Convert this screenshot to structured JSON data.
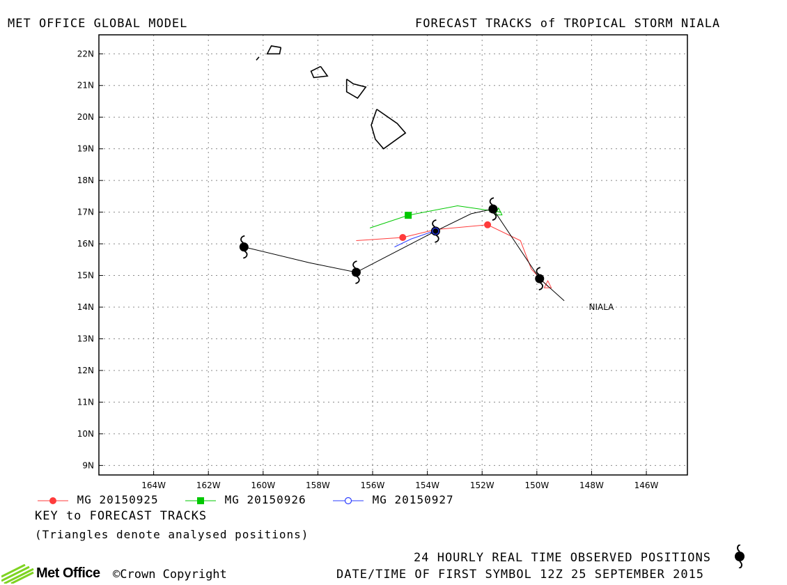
{
  "header": {
    "left_title": "MET OFFICE GLOBAL MODEL",
    "right_title": "FORECAST TRACKS of TROPICAL STORM NIALA"
  },
  "chart_data": {
    "type": "line",
    "title": "FORECAST TRACKS of TROPICAL STORM NIALA",
    "xlim_degW": [
      166,
      144.5
    ],
    "ylim_degN": [
      8.7,
      22.6
    ],
    "x_ticks": [
      "164W",
      "162W",
      "160W",
      "158W",
      "156W",
      "154W",
      "152W",
      "150W",
      "148W",
      "146W"
    ],
    "x_tick_values": [
      164,
      162,
      160,
      158,
      156,
      154,
      152,
      150,
      148,
      146
    ],
    "y_ticks": [
      "9N",
      "10N",
      "11N",
      "12N",
      "13N",
      "14N",
      "15N",
      "16N",
      "17N",
      "18N",
      "19N",
      "20N",
      "21N",
      "22N"
    ],
    "y_tick_values": [
      9,
      10,
      11,
      12,
      13,
      14,
      15,
      16,
      17,
      18,
      19,
      20,
      21,
      22
    ],
    "grid": true,
    "storm_label": "NIALA",
    "storm_label_position": {
      "lon": 148.1,
      "lat": 14.0
    },
    "observed_track": {
      "name": "24 HOURLY REAL TIME OBSERVED POSITIONS",
      "color": "#000000",
      "points": [
        [
          149.0,
          14.2
        ],
        [
          149.9,
          14.9
        ],
        [
          151.6,
          17.1
        ],
        [
          152.4,
          16.95
        ],
        [
          153.7,
          16.4
        ],
        [
          156.6,
          15.1
        ],
        [
          158.3,
          15.4
        ],
        [
          160.7,
          15.9
        ]
      ],
      "symbols": [
        [
          149.9,
          14.9
        ],
        [
          151.6,
          17.1
        ],
        [
          153.7,
          16.4
        ],
        [
          156.6,
          15.1
        ],
        [
          160.7,
          15.9
        ]
      ]
    },
    "series": [
      {
        "name": "MG 20150925",
        "color": "#ff3b3b",
        "marker": "filled-circle",
        "points": [
          [
            149.6,
            14.65
          ],
          [
            150.2,
            15.2
          ],
          [
            150.6,
            16.1
          ],
          [
            151.8,
            16.6
          ],
          [
            153.7,
            16.45
          ],
          [
            154.9,
            16.2
          ],
          [
            156.6,
            16.1
          ]
        ],
        "markers": [
          [
            151.8,
            16.6
          ],
          [
            154.9,
            16.2
          ]
        ],
        "analysed": [
          [
            149.6,
            14.7
          ]
        ]
      },
      {
        "name": "MG 20150926",
        "color": "#00c800",
        "marker": "filled-square",
        "points": [
          [
            151.3,
            17.0
          ],
          [
            152.9,
            17.2
          ],
          [
            154.7,
            16.9
          ],
          [
            156.1,
            16.5
          ]
        ],
        "markers": [
          [
            154.7,
            16.9
          ]
        ],
        "analysed": [
          [
            151.4,
            17.0
          ]
        ]
      },
      {
        "name": "MG 20150927",
        "color": "#2a3cff",
        "marker": "open-circle",
        "points": [
          [
            153.6,
            16.45
          ],
          [
            154.6,
            16.15
          ],
          [
            155.2,
            15.9
          ]
        ],
        "markers": [
          [
            153.7,
            16.4
          ]
        ],
        "analysed": [
          [
            153.75,
            16.42
          ]
        ]
      }
    ],
    "coastlines": [
      [
        [
          159.35,
          22.2
        ],
        [
          159.7,
          22.25
        ],
        [
          159.85,
          22.0
        ],
        [
          159.4,
          22.0
        ],
        [
          159.35,
          22.2
        ]
      ],
      [
        [
          160.15,
          21.9
        ],
        [
          160.25,
          21.8
        ]
      ],
      [
        [
          157.9,
          21.6
        ],
        [
          157.65,
          21.3
        ],
        [
          158.15,
          21.25
        ],
        [
          158.25,
          21.45
        ],
        [
          157.9,
          21.6
        ]
      ],
      [
        [
          156.95,
          21.2
        ],
        [
          156.7,
          21.05
        ],
        [
          156.25,
          20.95
        ],
        [
          156.55,
          20.6
        ],
        [
          156.95,
          20.8
        ],
        [
          156.95,
          21.2
        ]
      ],
      [
        [
          155.85,
          20.25
        ],
        [
          155.1,
          19.8
        ],
        [
          154.8,
          19.5
        ],
        [
          155.6,
          19.0
        ],
        [
          155.9,
          19.3
        ],
        [
          156.05,
          19.75
        ],
        [
          155.85,
          20.25
        ]
      ]
    ]
  },
  "legend": {
    "items": [
      {
        "label": "MG 20150925",
        "color": "#ff3b3b",
        "marker": "filled-circle"
      },
      {
        "label": "MG 20150926",
        "color": "#00c800",
        "marker": "filled-square"
      },
      {
        "label": "MG 20150927",
        "color": "#2a3cff",
        "marker": "open-circle"
      }
    ],
    "key_title": "KEY to FORECAST TRACKS",
    "key_note": "(Triangles denote analysed positions)"
  },
  "footer": {
    "observed_label": "24 HOURLY REAL TIME OBSERVED POSITIONS",
    "first_symbol": "DATE/TIME OF FIRST SYMBOL 12Z 25 SEPTEMBER 2015",
    "logo_text": "Met Office",
    "copyright": "Crown Copyright"
  },
  "colors": {
    "logo_green": "#7ed321",
    "grid": "#888888"
  }
}
